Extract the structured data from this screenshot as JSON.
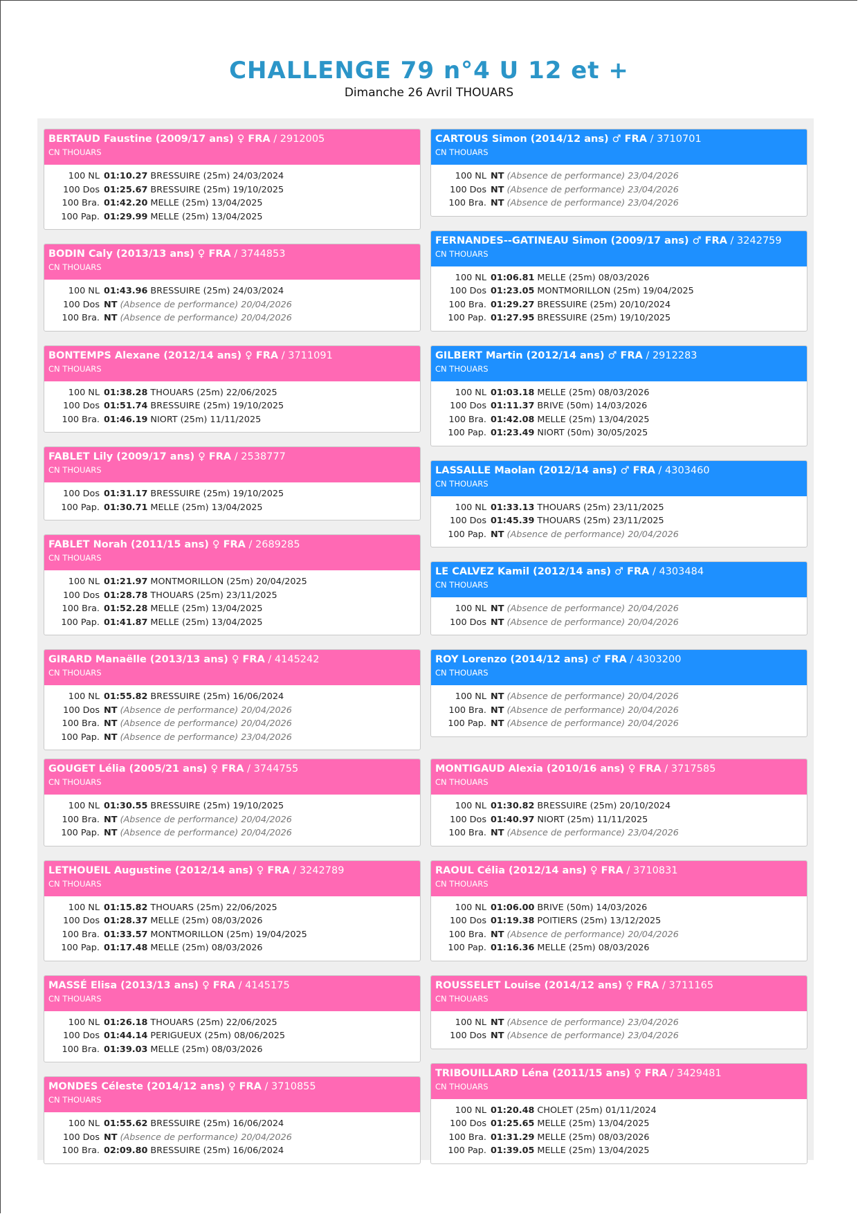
{
  "header": {
    "title": "CHALLENGE 79 n°4 U 12 et +",
    "subtitle": "Dimanche 26 Avril THOUARS"
  },
  "sections": [
    {
      "columns": [
        [
          {
            "name": "BERTAUD Faustine (2009/17 ans) ♀ FRA",
            "license": "/ 2912005",
            "club": "CN THOUARS",
            "color": "#ff69b4",
            "rows": [
              [
                "100 NL",
                "01:10.27",
                "BRESSUIRE (25m) 24/03/2024"
              ],
              [
                "100 Dos",
                "01:25.67",
                "BRESSUIRE (25m) 19/10/2025"
              ],
              [
                "100 Bra.",
                "01:42.20",
                "MELLE (25m) 13/04/2025"
              ],
              [
                "100 Pap.",
                "01:29.99",
                "MELLE (25m) 13/04/2025"
              ]
            ]
          },
          {
            "name": "BODIN Caly (2013/13 ans) ♀ FRA",
            "license": "/ 3744853",
            "club": "CN THOUARS",
            "color": "#ff69b4",
            "rows": [
              [
                "100 NL",
                "01:43.96",
                "BRESSUIRE (25m) 24/03/2024"
              ],
              [
                "100 Dos",
                "NT",
                "(Absence de performance)",
                "20/04/2026"
              ],
              [
                "100 Bra.",
                "NT",
                "(Absence de performance)",
                "20/04/2026"
              ]
            ]
          },
          {
            "name": "BONTEMPS Alexane (2012/14 ans) ♀ FRA",
            "license": "/ 3711091",
            "club": "CN THOUARS",
            "color": "#ff69b4",
            "rows": [
              [
                "100 NL",
                "01:38.28",
                "THOUARS (25m) 22/06/2025"
              ],
              [
                "100 Dos",
                "01:51.74",
                "BRESSUIRE (25m) 19/10/2025"
              ],
              [
                "100 Bra.",
                "01:46.19",
                "NIORT (25m) 11/11/2025"
              ]
            ]
          },
          {
            "name": "FABLET Lily (2009/17 ans) ♀ FRA",
            "license": "/ 2538777",
            "club": "CN THOUARS",
            "color": "#ff69b4",
            "rows": [
              [
                "100 Dos",
                "01:31.17",
                "BRESSUIRE (25m) 19/10/2025"
              ],
              [
                "100 Pap.",
                "01:30.71",
                "MELLE (25m) 13/04/2025"
              ]
            ]
          },
          {
            "name": "FABLET Norah (2011/15 ans) ♀ FRA",
            "license": "/ 2689285",
            "club": "CN THOUARS",
            "color": "#ff69b4",
            "rows": [
              [
                "100 NL",
                "01:21.97",
                "MONTMORILLON (25m) 20/04/2025"
              ],
              [
                "100 Dos",
                "01:28.78",
                "THOUARS (25m) 23/11/2025"
              ],
              [
                "100 Bra.",
                "01:52.28",
                "MELLE (25m) 13/04/2025"
              ],
              [
                "100 Pap.",
                "01:41.87",
                "MELLE (25m) 13/04/2025"
              ]
            ]
          },
          {
            "name": "GIRARD Manaëlle (2013/13 ans) ♀ FRA",
            "license": "/ 4145242",
            "club": "CN THOUARS",
            "color": "#ff69b4",
            "rows": [
              [
                "100 NL",
                "01:55.82",
                "BRESSUIRE (25m) 16/06/2024"
              ],
              [
                "100 Dos",
                "NT",
                "(Absence de performance)",
                "20/04/2026"
              ],
              [
                "100 Bra.",
                "NT",
                "(Absence de performance)",
                "20/04/2026"
              ],
              [
                "100 Pap.",
                "NT",
                "(Absence de performance)",
                "23/04/2026"
              ]
            ]
          }
        ],
        [
          {
            "name": "CARTOUS Simon (2014/12 ans) ♂ FRA",
            "license": "/ 3710701",
            "club": "CN THOUARS",
            "color": "#1e90ff",
            "rows": [
              [
                "100 NL",
                "NT",
                "(Absence de performance)",
                "23/04/2026"
              ],
              [
                "100 Dos",
                "NT",
                "(Absence de performance)",
                "23/04/2026"
              ],
              [
                "100 Bra.",
                "NT",
                "(Absence de performance)",
                "23/04/2026"
              ]
            ]
          },
          {
            "name": "FERNANDES--GATINEAU Simon (2009/17 ans) ♂ FRA",
            "license": "/ 3242759",
            "club": "CN THOUARS",
            "color": "#1e90ff",
            "rows": [
              [
                "100 NL",
                "01:06.81",
                "MELLE (25m) 08/03/2026"
              ],
              [
                "100 Dos",
                "01:23.05",
                "MONTMORILLON (25m) 19/04/2025"
              ],
              [
                "100 Bra.",
                "01:29.27",
                "BRESSUIRE (25m) 20/10/2024"
              ],
              [
                "100 Pap.",
                "01:27.95",
                "BRESSUIRE (25m) 19/10/2025"
              ]
            ]
          },
          {
            "name": "GILBERT Martin (2012/14 ans) ♂ FRA",
            "license": "/ 2912283",
            "club": "CN THOUARS",
            "color": "#1e90ff",
            "rows": [
              [
                "100 NL",
                "01:03.18",
                "MELLE (25m) 08/03/2026"
              ],
              [
                "100 Dos",
                "01:11.37",
                "BRIVE (50m) 14/03/2026"
              ],
              [
                "100 Bra.",
                "01:42.08",
                "MELLE (25m) 13/04/2025"
              ],
              [
                "100 Pap.",
                "01:23.49",
                "NIORT (50m) 30/05/2025"
              ]
            ]
          },
          {
            "name": "LASSALLE Maolan (2012/14 ans) ♂ FRA",
            "license": "/ 4303460",
            "club": "CN THOUARS",
            "color": "#1e90ff",
            "rows": [
              [
                "100 NL",
                "01:33.13",
                "THOUARS (25m) 23/11/2025"
              ],
              [
                "100 Dos",
                "01:45.39",
                "THOUARS (25m) 23/11/2025"
              ],
              [
                "100 Pap.",
                "NT",
                "(Absence de performance)",
                "20/04/2026"
              ]
            ]
          },
          {
            "name": "LE CALVEZ Kamil (2012/14 ans) ♂ FRA",
            "license": "/ 4303484",
            "club": "CN THOUARS",
            "color": "#1e90ff",
            "rows": [
              [
                "100 NL",
                "NT",
                "(Absence de performance)",
                "20/04/2026"
              ],
              [
                "100 Dos",
                "NT",
                "(Absence de performance)",
                "20/04/2026"
              ]
            ]
          },
          {
            "name": "ROY Lorenzo (2014/12 ans) ♂ FRA",
            "license": "/ 4303200",
            "club": "CN THOUARS",
            "color": "#1e90ff",
            "rows": [
              [
                "100 NL",
                "NT",
                "(Absence de performance)",
                "20/04/2026"
              ],
              [
                "100 Bra.",
                "NT",
                "(Absence de performance)",
                "20/04/2026"
              ],
              [
                "100 Pap.",
                "NT",
                "(Absence de performance)",
                "20/04/2026"
              ]
            ]
          }
        ]
      ]
    },
    {
      "columns": [
        [
          {
            "name": "GOUGET Lélia (2005/21 ans) ♀ FRA",
            "license": "/ 3744755",
            "club": "CN THOUARS",
            "color": "#ff69b4",
            "rows": [
              [
                "100 NL",
                "01:30.55",
                "BRESSUIRE (25m) 19/10/2025"
              ],
              [
                "100 Bra.",
                "NT",
                "(Absence de performance)",
                "20/04/2026"
              ],
              [
                "100 Pap.",
                "NT",
                "(Absence de performance)",
                "20/04/2026"
              ]
            ]
          },
          {
            "name": "LETHOUEIL Augustine (2012/14 ans) ♀ FRA",
            "license": "/ 3242789",
            "club": "CN THOUARS",
            "color": "#ff69b4",
            "rows": [
              [
                "100 NL",
                "01:15.82",
                "THOUARS (25m) 22/06/2025"
              ],
              [
                "100 Dos",
                "01:28.37",
                "MELLE (25m) 08/03/2026"
              ],
              [
                "100 Bra.",
                "01:33.57",
                "MONTMORILLON (25m) 19/04/2025"
              ],
              [
                "100 Pap.",
                "01:17.48",
                "MELLE (25m) 08/03/2026"
              ]
            ]
          },
          {
            "name": "MASSÉ Elisa (2013/13 ans) ♀ FRA",
            "license": "/ 4145175",
            "club": "CN THOUARS",
            "color": "#ff69b4",
            "rows": [
              [
                "100 NL",
                "01:26.18",
                "THOUARS (25m) 22/06/2025"
              ],
              [
                "100 Dos",
                "01:44.14",
                "PERIGUEUX (25m) 08/06/2025"
              ],
              [
                "100 Bra.",
                "01:39.03",
                "MELLE (25m) 08/03/2026"
              ]
            ]
          },
          {
            "name": "MONDES Céleste (2014/12 ans) ♀ FRA",
            "license": "/ 3710855",
            "club": "CN THOUARS",
            "color": "#ff69b4",
            "rows": [
              [
                "100 NL",
                "01:55.62",
                "BRESSUIRE (25m) 16/06/2024"
              ],
              [
                "100 Dos",
                "NT",
                "(Absence de performance)",
                "20/04/2026"
              ],
              [
                "100 Bra.",
                "02:09.80",
                "BRESSUIRE (25m) 16/06/2024"
              ]
            ]
          }
        ],
        [
          {
            "name": "MONTIGAUD Alexia (2010/16 ans) ♀ FRA",
            "license": "/ 3717585",
            "club": "CN THOUARS",
            "color": "#ff69b4",
            "rows": [
              [
                "100 NL",
                "01:30.82",
                "BRESSUIRE (25m) 20/10/2024"
              ],
              [
                "100 Dos",
                "01:40.97",
                "NIORT (25m) 11/11/2025"
              ],
              [
                "100 Bra.",
                "NT",
                "(Absence de performance)",
                "23/04/2026"
              ]
            ]
          },
          {
            "name": "RAOUL Célia (2012/14 ans) ♀ FRA",
            "license": "/ 3710831",
            "club": "CN THOUARS",
            "color": "#ff69b4",
            "rows": [
              [
                "100 NL",
                "01:06.00",
                "BRIVE (50m) 14/03/2026"
              ],
              [
                "100 Dos",
                "01:19.38",
                "POITIERS (25m) 13/12/2025"
              ],
              [
                "100 Bra.",
                "NT",
                "(Absence de performance)",
                "20/04/2026"
              ],
              [
                "100 Pap.",
                "01:16.36",
                "MELLE (25m) 08/03/2026"
              ]
            ]
          },
          {
            "name": "ROUSSELET Louise (2014/12 ans) ♀ FRA",
            "license": "/ 3711165",
            "club": "CN THOUARS",
            "color": "#ff69b4",
            "rows": [
              [
                "100 NL",
                "NT",
                "(Absence de performance)",
                "23/04/2026"
              ],
              [
                "100 Dos",
                "NT",
                "(Absence de performance)",
                "23/04/2026"
              ]
            ]
          },
          {
            "name": "TRIBOUILLARD Léna (2011/15 ans) ♀ FRA",
            "license": "/ 3429481",
            "club": "CN THOUARS",
            "color": "#ff69b4",
            "rows": [
              [
                "100 NL",
                "01:20.48",
                "CHOLET (25m) 01/11/2024"
              ],
              [
                "100 Dos",
                "01:25.65",
                "MELLE (25m) 13/04/2025"
              ],
              [
                "100 Bra.",
                "01:31.29",
                "MELLE (25m) 08/03/2026"
              ],
              [
                "100 Pap.",
                "01:39.05",
                "MELLE (25m) 13/04/2025"
              ]
            ]
          }
        ]
      ]
    }
  ]
}
